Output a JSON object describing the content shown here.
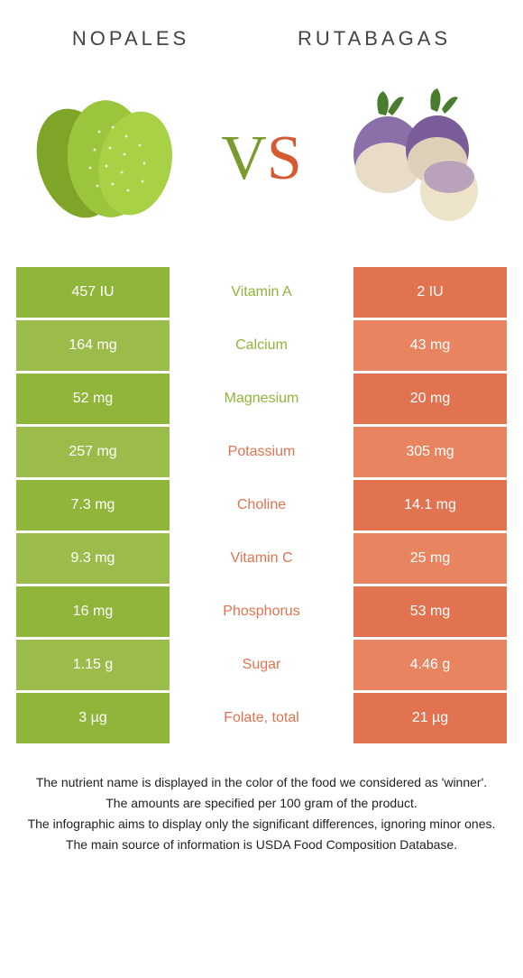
{
  "food1": {
    "name": "Nopales",
    "color": "#8fb53a",
    "color_alt": "#9bbc4a"
  },
  "food2": {
    "name": "Rutabagas",
    "color": "#e27350",
    "color_alt": "#e8845f"
  },
  "vs_label": {
    "v": "V",
    "s": "S"
  },
  "rows": [
    {
      "nutrient": "Vitamin A",
      "left": "457 IU",
      "right": "2 IU",
      "winner": "left"
    },
    {
      "nutrient": "Calcium",
      "left": "164 mg",
      "right": "43 mg",
      "winner": "left"
    },
    {
      "nutrient": "Magnesium",
      "left": "52 mg",
      "right": "20 mg",
      "winner": "left"
    },
    {
      "nutrient": "Potassium",
      "left": "257 mg",
      "right": "305 mg",
      "winner": "right"
    },
    {
      "nutrient": "Choline",
      "left": "7.3 mg",
      "right": "14.1 mg",
      "winner": "right"
    },
    {
      "nutrient": "Vitamin C",
      "left": "9.3 mg",
      "right": "25 mg",
      "winner": "right"
    },
    {
      "nutrient": "Phosphorus",
      "left": "16 mg",
      "right": "53 mg",
      "winner": "right"
    },
    {
      "nutrient": "Sugar",
      "left": "1.15 g",
      "right": "4.46 g",
      "winner": "right"
    },
    {
      "nutrient": "Folate, total",
      "left": "3 µg",
      "right": "21 µg",
      "winner": "right"
    }
  ],
  "footer": {
    "line1": "The nutrient name is displayed in the color of the food we considered as 'winner'.",
    "line2": "The amounts are specified per 100 gram of the product.",
    "line3": "The infographic aims to display only the significant differences, ignoring minor ones.",
    "line4": "The main source of information is USDA Food Composition Database."
  }
}
